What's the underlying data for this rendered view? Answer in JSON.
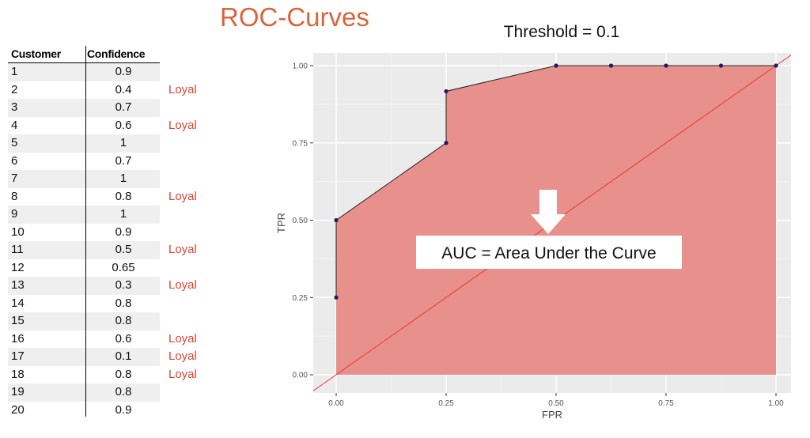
{
  "title": "ROC-Curves",
  "threshold_label": "Threshold = 0.1",
  "table": {
    "headers": [
      "Customer",
      "Confidence"
    ],
    "rows": [
      {
        "customer": "1",
        "confidence": "0.9",
        "tag": ""
      },
      {
        "customer": "2",
        "confidence": "0.4",
        "tag": "Loyal"
      },
      {
        "customer": "3",
        "confidence": "0.7",
        "tag": ""
      },
      {
        "customer": "4",
        "confidence": "0.6",
        "tag": "Loyal"
      },
      {
        "customer": "5",
        "confidence": "1",
        "tag": ""
      },
      {
        "customer": "6",
        "confidence": "0.7",
        "tag": ""
      },
      {
        "customer": "7",
        "confidence": "1",
        "tag": ""
      },
      {
        "customer": "8",
        "confidence": "0.8",
        "tag": "Loyal"
      },
      {
        "customer": "9",
        "confidence": "1",
        "tag": ""
      },
      {
        "customer": "10",
        "confidence": "0.9",
        "tag": ""
      },
      {
        "customer": "11",
        "confidence": "0.5",
        "tag": "Loyal"
      },
      {
        "customer": "12",
        "confidence": "0.65",
        "tag": ""
      },
      {
        "customer": "13",
        "confidence": "0.3",
        "tag": "Loyal"
      },
      {
        "customer": "14",
        "confidence": "0.8",
        "tag": ""
      },
      {
        "customer": "15",
        "confidence": "0.8",
        "tag": ""
      },
      {
        "customer": "16",
        "confidence": "0.6",
        "tag": "Loyal"
      },
      {
        "customer": "17",
        "confidence": "0.1",
        "tag": "Loyal"
      },
      {
        "customer": "18",
        "confidence": "0.8",
        "tag": "Loyal"
      },
      {
        "customer": "19",
        "confidence": "0.8",
        "tag": ""
      },
      {
        "customer": "20",
        "confidence": "0.9",
        "tag": ""
      }
    ]
  },
  "colors": {
    "title": "#d9653b",
    "loyal": "#e0432f",
    "area_fill": "#e8908b",
    "diagonal": "#e8372c",
    "points": "#1d1a5e",
    "panel": "#ebebeb"
  },
  "annotation": {
    "text": "AUC = Area Under the Curve",
    "arrow": "down-arrow"
  },
  "chart_data": {
    "type": "area",
    "title": "",
    "xlabel": "FPR",
    "ylabel": "TPR",
    "xlim": [
      0,
      1
    ],
    "ylim": [
      0,
      1
    ],
    "grid": true,
    "xticks": [
      "0.00",
      "0.25",
      "0.50",
      "0.75",
      "1.00"
    ],
    "yticks": [
      "0.00",
      "0.25",
      "0.50",
      "0.75",
      "1.00"
    ],
    "series": [
      {
        "x": [
          0.0,
          0.0,
          0.25,
          0.25,
          0.5,
          0.625,
          0.75,
          0.875,
          1.0
        ],
        "y": [
          0.25,
          0.5,
          0.75,
          0.917,
          1.0,
          1.0,
          1.0,
          1.0,
          1.0
        ]
      }
    ],
    "reference_line": {
      "x": [
        0,
        1
      ],
      "y": [
        0,
        1
      ]
    }
  }
}
